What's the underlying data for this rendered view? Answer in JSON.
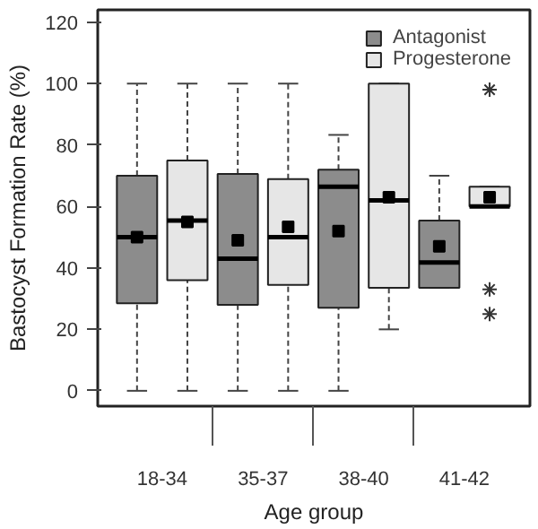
{
  "chart_data": {
    "type": "box",
    "xlabel": "Age group",
    "ylabel": "Bastocyst Formation Rate (%)",
    "categories": [
      "18-34",
      "35-37",
      "38-40",
      "41-42"
    ],
    "ylim": [
      -5,
      124
    ],
    "yticks": [
      0,
      20,
      40,
      60,
      80,
      100,
      120
    ],
    "grid": false,
    "legend": "top right",
    "series": [
      {
        "name": "Antagonist",
        "color": "#8c8c8c",
        "boxes": [
          {
            "low": 0,
            "q1": 28.5,
            "median": 50,
            "q3": 70,
            "high": 100,
            "mean": 50
          },
          {
            "low": 0,
            "q1": 28,
            "median": 43,
            "q3": 70.6,
            "high": 100,
            "mean": 49
          },
          {
            "low": 0,
            "q1": 27,
            "median": 66.4,
            "q3": 72,
            "high": 83.3,
            "mean": 52
          },
          {
            "low": 33.5,
            "q1": 33.5,
            "median": 41.8,
            "q3": 55.4,
            "high": 70,
            "mean": 47
          }
        ]
      },
      {
        "name": "Progesterone",
        "color": "#e6e6e6",
        "boxes": [
          {
            "low": 0,
            "q1": 36,
            "median": 55.4,
            "q3": 75,
            "high": 100,
            "mean": 55
          },
          {
            "low": 0,
            "q1": 34.5,
            "median": 50,
            "q3": 68.9,
            "high": 100,
            "mean": 53.4
          },
          {
            "low": 20,
            "q1": 33.5,
            "median": 62,
            "q3": 100,
            "high": 100,
            "mean": 63
          },
          {
            "low": 60,
            "q1": 60,
            "median": 60,
            "q3": 66.4,
            "high": 66.4,
            "mean": 63,
            "outliers": [
              98,
              33,
              25
            ]
          }
        ]
      }
    ]
  }
}
